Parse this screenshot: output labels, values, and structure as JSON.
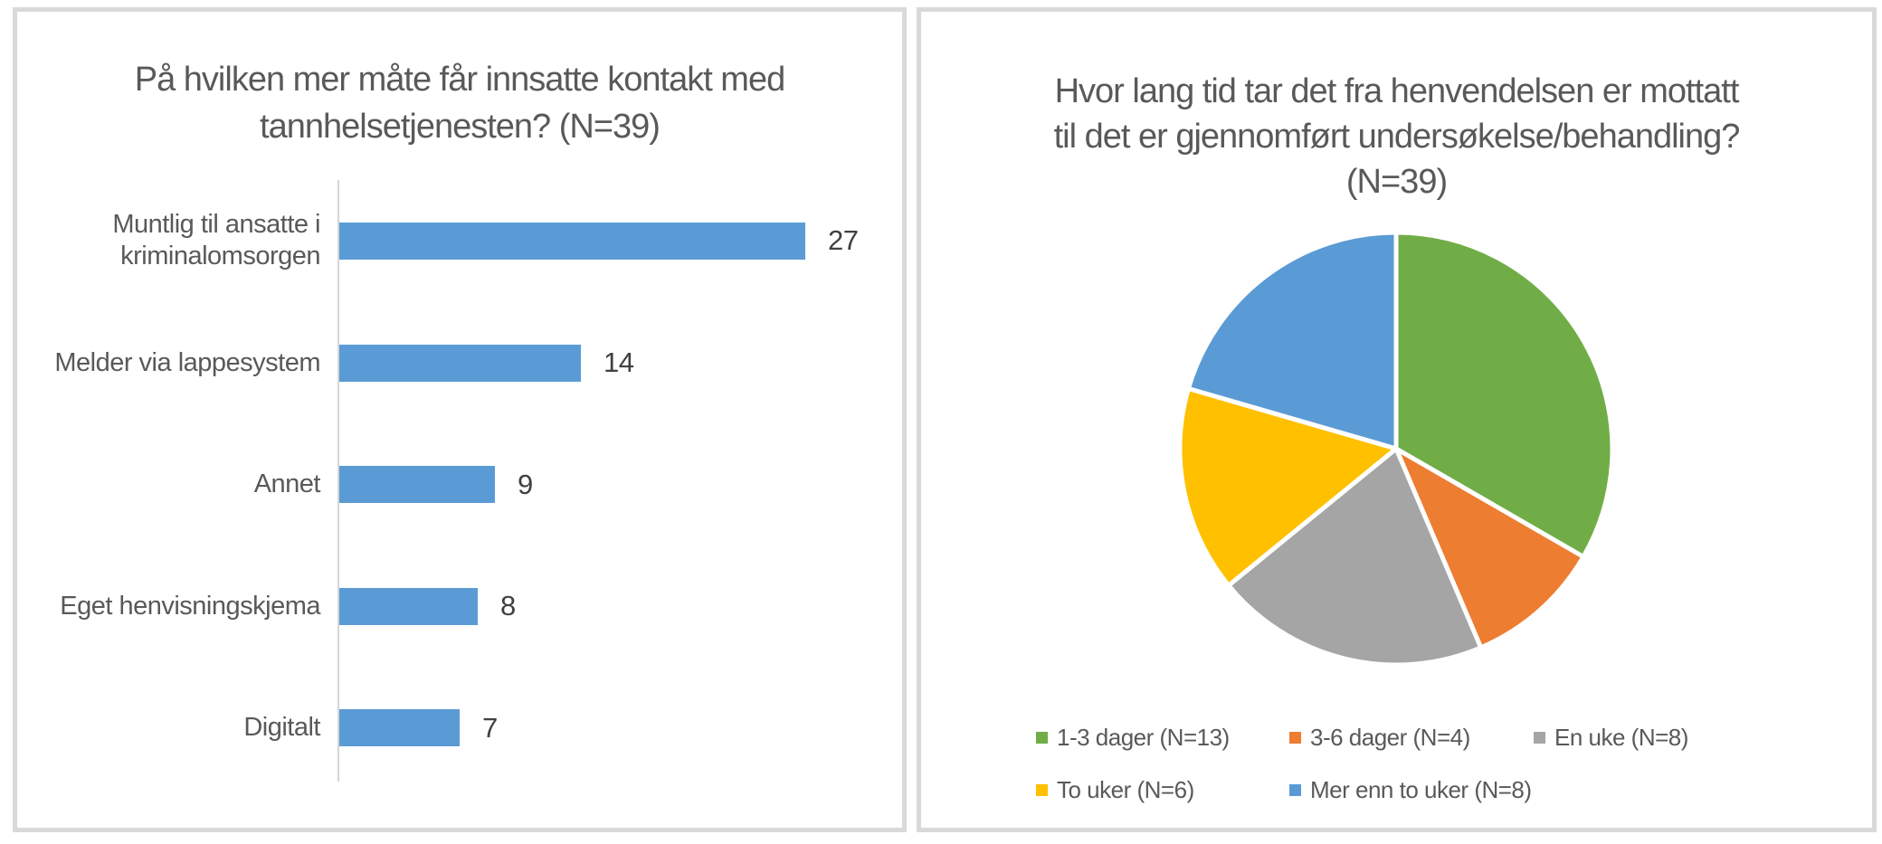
{
  "colors": {
    "bar_blue": "#5B9BD5",
    "panel_border": "#D9D9D9",
    "axis_line": "#D6D6D6",
    "title_text": "#595959",
    "value_text": "#404040",
    "background": "#FFFFFF"
  },
  "chart_data": [
    {
      "type": "bar",
      "orientation": "horizontal",
      "title": "På hvilken mer måte får innsatte kontakt med tannhelsetjenesten? (N=39)",
      "title_lines": [
        "På hvilken mer måte får innsatte kontakt med",
        "tannhelsetjenesten? (N=39)"
      ],
      "n": 39,
      "categories": [
        "Muntlig til ansatte i kriminalomsorgen",
        "Melder via lappesystem",
        "Annet",
        "Eget henvisningskjema",
        "Digitalt"
      ],
      "values": [
        27,
        14,
        9,
        8,
        7
      ],
      "data_labels": [
        "27",
        "14",
        "9",
        "8",
        "7"
      ],
      "bar_color": "#5B9BD5",
      "grid": false,
      "axis": "left-vertical-baseline-only"
    },
    {
      "type": "pie",
      "title": "Hvor lang tid tar det fra henvendelsen er mottatt til det er gjennomført undersøkelse/behandling? (N=39)",
      "title_lines": [
        "Hvor lang tid tar det fra henvendelsen er mottatt",
        "til det er gjennomført undersøkelse/behandling?",
        "(N=39)"
      ],
      "n": 39,
      "start_angle_deg": 0,
      "direction": "clockwise",
      "legend_position": "bottom",
      "slices": [
        {
          "label": "1-3 dager (N=13)",
          "value": 13,
          "color": "#70AD47"
        },
        {
          "label": "3-6 dager (N=4)",
          "value": 4,
          "color": "#ED7D31"
        },
        {
          "label": "En uke (N=8)",
          "value": 8,
          "color": "#A5A5A5"
        },
        {
          "label": "To uker (N=6)",
          "value": 6,
          "color": "#FFC000"
        },
        {
          "label": "Mer enn to uker (N=8)",
          "value": 8,
          "color": "#5B9BD5"
        }
      ]
    }
  ]
}
